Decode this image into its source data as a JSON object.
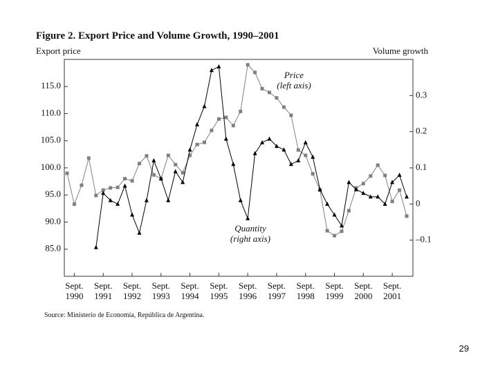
{
  "chart_data": {
    "type": "line",
    "title": "Figure 2. Export Price and Volume Growth, 1990–2001",
    "y_label": "Export price",
    "y2_label": "Volume growth",
    "source": "Source: Ministerio de Economía, República de Argentina.",
    "page_number": "29",
    "annotations": [
      {
        "text": "Price",
        "note": "(left axis)",
        "series": 0
      },
      {
        "text": "Quantity",
        "note": "(right axis)",
        "series": 1
      }
    ],
    "categories": [
      null,
      "Sept. 1990",
      null,
      null,
      null,
      "Sept. 1991",
      null,
      null,
      null,
      "Sept. 1992",
      null,
      null,
      null,
      "Sept. 1993",
      null,
      null,
      null,
      "Sept. 1994",
      null,
      null,
      null,
      "Sept. 1995",
      null,
      null,
      null,
      "Sept. 1996",
      null,
      null,
      null,
      "Sept. 1997",
      null,
      null,
      null,
      "Sept. 1998",
      null,
      null,
      null,
      "Sept. 1999",
      null,
      null,
      null,
      "Sept. 2000",
      null,
      null,
      null,
      "Sept. 2001",
      null,
      null
    ],
    "ylim": [
      80,
      120
    ],
    "yticks": [
      {
        "value": 85,
        "label": "85.0"
      },
      {
        "value": 90,
        "label": "90.0"
      },
      {
        "value": 95,
        "label": "95.0"
      },
      {
        "value": 100,
        "label": "100.0"
      },
      {
        "value": 105,
        "label": "105.0"
      },
      {
        "value": 110,
        "label": "110.0"
      },
      {
        "value": 115,
        "label": "115.0"
      }
    ],
    "y2lim": [
      -0.2,
      0.4
    ],
    "y2ticks": [
      {
        "value": -0.1,
        "label": "–0.1"
      },
      0,
      0.1,
      0.2,
      0.3
    ],
    "series": [
      {
        "name": "Price",
        "color": "#808080",
        "marker": "square",
        "values": [
          99.0,
          93.3,
          96.8,
          101.8,
          94.9,
          95.9,
          96.3,
          96.4,
          98.0,
          97.6,
          100.8,
          102.2,
          98.7,
          98.0,
          102.3,
          100.6,
          99.1,
          102.3,
          104.3,
          104.7,
          106.9,
          109.0,
          109.3,
          107.8,
          110.4,
          119.0,
          117.6,
          114.6,
          113.9,
          112.9,
          111.2,
          109.7,
          103.3,
          102.3,
          98.9,
          95.9,
          88.4,
          87.5,
          88.3,
          92.1,
          96.3,
          97.1,
          98.5,
          100.5,
          98.6,
          93.8,
          95.9,
          91.1
        ]
      },
      {
        "name": "Quantity",
        "color": "#000000",
        "marker": "triangle",
        "axis": "y2",
        "values": [
          null,
          null,
          null,
          null,
          -0.12,
          0.03,
          0.01,
          0.0,
          0.05,
          -0.03,
          -0.08,
          0.01,
          0.12,
          0.07,
          0.01,
          0.09,
          0.06,
          0.15,
          0.22,
          0.27,
          0.37,
          0.38,
          0.18,
          0.11,
          0.01,
          -0.04,
          0.14,
          0.17,
          0.18,
          0.16,
          0.15,
          0.11,
          0.12,
          0.17,
          0.13,
          0.04,
          0.0,
          -0.03,
          -0.06,
          0.06,
          0.04,
          0.03,
          0.02,
          0.02,
          0.0,
          0.06,
          0.08,
          0.02
        ]
      }
    ]
  }
}
